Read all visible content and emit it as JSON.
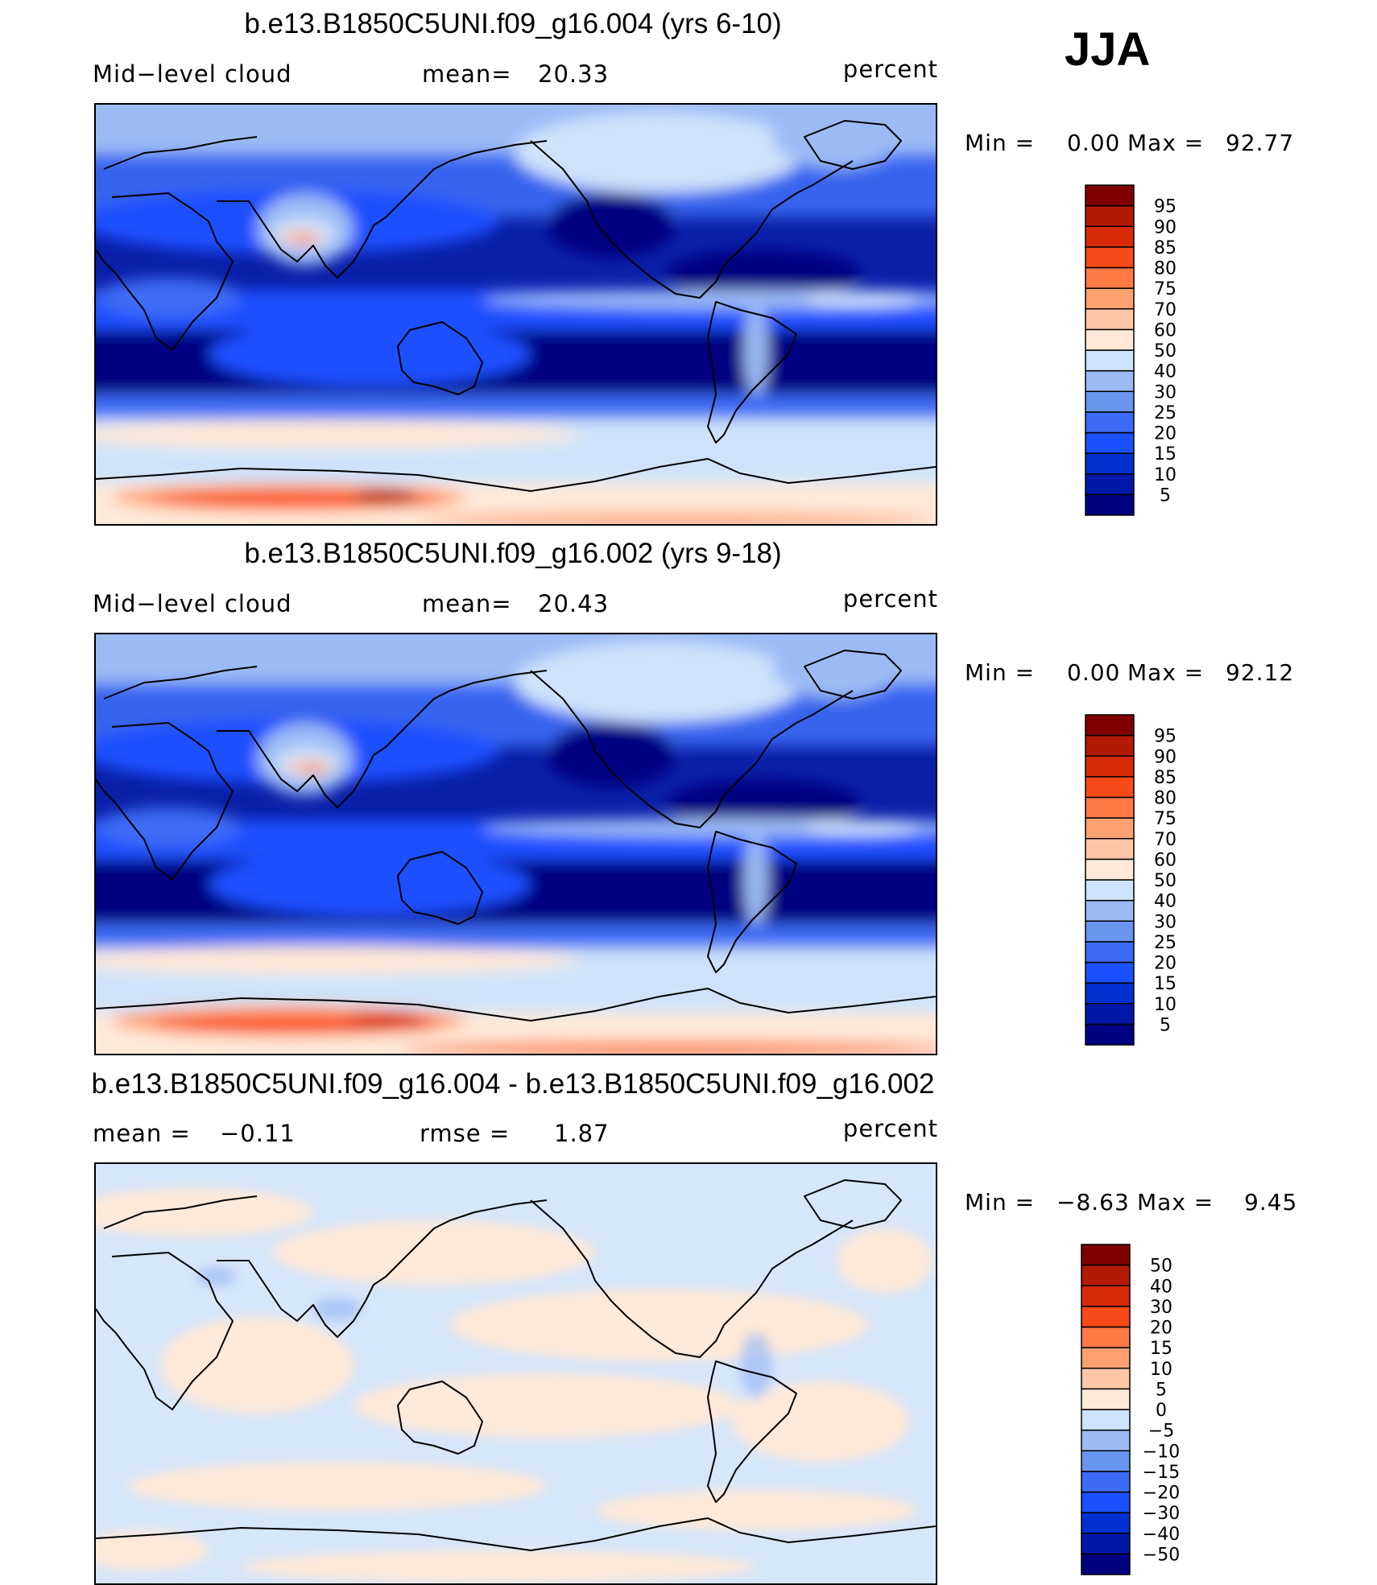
{
  "season": "JJA",
  "panels": [
    {
      "title": "b.e13.B1850C5UNI.f09_g16.004 (yrs 6-10)",
      "variable": "Mid−level cloud",
      "stat1_label": "mean=",
      "stat1_value": "20.33",
      "stat2_label": "",
      "stat2_value": "",
      "units": "percent",
      "min_label": "Min =",
      "min_value": "0.00",
      "max_label": "Max =",
      "max_value": "92.77",
      "colorbar": {
        "colors": [
          "#000080",
          "#0018a8",
          "#0030d0",
          "#1a50ff",
          "#3c6cf5",
          "#6a95ee",
          "#9cbbf5",
          "#cde3fb",
          "#ffe9d8",
          "#ffc7a8",
          "#ffa070",
          "#ff7a45",
          "#f84a18",
          "#d82a08",
          "#b31a05",
          "#800000"
        ],
        "labels": [
          "5",
          "10",
          "15",
          "20",
          "25",
          "30",
          "40",
          "50",
          "60",
          "70",
          "75",
          "80",
          "85",
          "90",
          "95"
        ]
      }
    },
    {
      "title": "b.e13.B1850C5UNI.f09_g16.002 (yrs 9-18)",
      "variable": "Mid−level cloud",
      "stat1_label": "mean=",
      "stat1_value": "20.43",
      "stat2_label": "",
      "stat2_value": "",
      "units": "percent",
      "min_label": "Min =",
      "min_value": "0.00",
      "max_label": "Max =",
      "max_value": "92.12",
      "colorbar": {
        "colors": [
          "#000080",
          "#0018a8",
          "#0030d0",
          "#1a50ff",
          "#3c6cf5",
          "#6a95ee",
          "#9cbbf5",
          "#cde3fb",
          "#ffe9d8",
          "#ffc7a8",
          "#ffa070",
          "#ff7a45",
          "#f84a18",
          "#d82a08",
          "#b31a05",
          "#800000"
        ],
        "labels": [
          "5",
          "10",
          "15",
          "20",
          "25",
          "30",
          "40",
          "50",
          "60",
          "70",
          "75",
          "80",
          "85",
          "90",
          "95"
        ]
      }
    },
    {
      "title": "b.e13.B1850C5UNI.f09_g16.004 - b.e13.B1850C5UNI.f09_g16.002",
      "variable": "",
      "stat1_label": "mean =",
      "stat1_value": "−0.11",
      "stat2_label": "rmse =",
      "stat2_value": "1.87",
      "units": "percent",
      "min_label": "Min =",
      "min_value": "−8.63",
      "max_label": "Max =",
      "max_value": "9.45",
      "colorbar": {
        "colors": [
          "#000080",
          "#0018a8",
          "#0030d0",
          "#1a50ff",
          "#3c6cf5",
          "#6a95ee",
          "#9cbbf5",
          "#cde3fb",
          "#ffe9d8",
          "#ffc7a8",
          "#ffa070",
          "#ff7a45",
          "#f84a18",
          "#d82a08",
          "#b31a05",
          "#800000"
        ],
        "labels": [
          "−50",
          "−40",
          "−30",
          "−20",
          "−15",
          "−10",
          "−5",
          "0",
          "5",
          "10",
          "15",
          "20",
          "30",
          "40",
          "50"
        ]
      }
    }
  ]
}
